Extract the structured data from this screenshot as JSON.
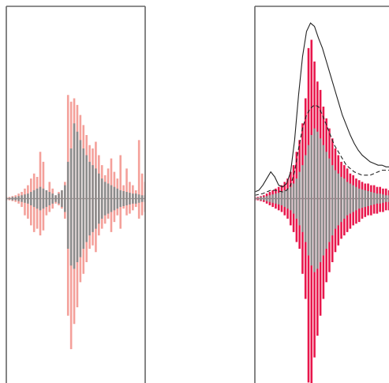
{
  "chart_data": [
    {
      "type": "bar",
      "panel": "left",
      "title": "",
      "xlabel": "",
      "ylabel": "",
      "grid": false,
      "legend": "none",
      "xlim": [
        -68,
        67
      ],
      "ylim": [
        -1.15,
        1.15
      ],
      "series": [
        {
          "style": "vertical-segments",
          "color": "#f4a09a",
          "x": [
            -68,
            -65,
            -62,
            -59,
            -56,
            -53,
            -50,
            -47,
            -44,
            -41,
            -38,
            -35,
            -32,
            -29,
            -26,
            -23,
            -20,
            -17,
            -14,
            -11,
            -8,
            -5,
            -2,
            1,
            4,
            7,
            10,
            13,
            16,
            19,
            22,
            25,
            28,
            31,
            34,
            37,
            40,
            43,
            46,
            49,
            52,
            55,
            58,
            61,
            64,
            67
          ],
          "y_upper": [
            0.01,
            0.01,
            0.015,
            0.02,
            0.03,
            0.04,
            0.06,
            0.08,
            0.12,
            0.15,
            0.13,
            0.28,
            0.22,
            0.05,
            0.1,
            0.06,
            0.02,
            0.04,
            0.05,
            0.1,
            0.62,
            0.58,
            0.6,
            0.56,
            0.5,
            0.44,
            0.38,
            0.32,
            0.3,
            0.34,
            0.26,
            0.2,
            0.14,
            0.18,
            0.24,
            0.16,
            0.12,
            0.26,
            0.08,
            0.18,
            0.1,
            0.08,
            0.05,
            0.35,
            0.15,
            0.1
          ],
          "y_lower": [
            -0.01,
            -0.01,
            -0.015,
            -0.02,
            -0.03,
            -0.05,
            -0.1,
            -0.12,
            -0.16,
            -0.2,
            -0.18,
            -0.22,
            -0.19,
            -0.1,
            -0.08,
            -0.06,
            -0.03,
            -0.04,
            -0.06,
            -0.12,
            -0.7,
            -0.9,
            -0.75,
            -0.65,
            -0.5,
            -0.45,
            -0.38,
            -0.3,
            -0.28,
            -0.32,
            -0.22,
            -0.18,
            -0.15,
            -0.12,
            -0.2,
            -0.14,
            -0.1,
            -0.18,
            -0.06,
            -0.1,
            -0.09,
            -0.07,
            -0.05,
            -0.12,
            -0.1,
            -0.08
          ]
        },
        {
          "style": "vertical-segments",
          "color": "#8c8c8c",
          "x": [
            -68,
            -65,
            -62,
            -59,
            -56,
            -53,
            -50,
            -47,
            -44,
            -41,
            -38,
            -35,
            -32,
            -29,
            -26,
            -23,
            -20,
            -17,
            -14,
            -11,
            -8,
            -5,
            -2,
            1,
            4,
            7,
            10,
            13,
            16,
            19,
            22,
            25,
            28,
            31,
            34,
            37,
            40,
            43,
            46,
            49,
            52,
            55,
            58,
            61,
            64,
            67
          ],
          "y_upper": [
            0.005,
            0.005,
            0.01,
            0.01,
            0.015,
            0.02,
            0.025,
            0.03,
            0.04,
            0.05,
            0.06,
            0.07,
            0.06,
            0.05,
            0.04,
            0.03,
            0.02,
            0.03,
            0.05,
            0.08,
            0.22,
            0.3,
            0.45,
            0.4,
            0.35,
            0.3,
            0.26,
            0.22,
            0.2,
            0.18,
            0.15,
            0.12,
            0.1,
            0.09,
            0.08,
            0.07,
            0.06,
            0.05,
            0.045,
            0.04,
            0.035,
            0.03,
            0.03,
            0.025,
            0.02,
            0.02
          ],
          "y_lower": [
            -0.005,
            -0.005,
            -0.01,
            -0.01,
            -0.015,
            -0.02,
            -0.025,
            -0.03,
            -0.04,
            -0.05,
            -0.06,
            -0.07,
            -0.06,
            -0.05,
            -0.04,
            -0.03,
            -0.02,
            -0.03,
            -0.05,
            -0.08,
            -0.3,
            -0.4,
            -0.42,
            -0.38,
            -0.35,
            -0.3,
            -0.26,
            -0.22,
            -0.2,
            -0.18,
            -0.15,
            -0.12,
            -0.1,
            -0.09,
            -0.08,
            -0.07,
            -0.06,
            -0.05,
            -0.045,
            -0.04,
            -0.035,
            -0.03,
            -0.03,
            -0.025,
            -0.02,
            -0.02
          ]
        }
      ]
    },
    {
      "type": "bar",
      "panel": "right",
      "title": "",
      "xlabel": "",
      "ylabel": "",
      "grid": false,
      "legend": "none",
      "xlim": [
        -68,
        67
      ],
      "ylim": [
        -1.15,
        1.15
      ],
      "series": [
        {
          "style": "vertical-segments",
          "color": "#e8174c",
          "x": [
            -68,
            -65,
            -62,
            -59,
            -56,
            -53,
            -50,
            -47,
            -44,
            -41,
            -38,
            -35,
            -32,
            -29,
            -26,
            -23,
            -20,
            -17,
            -14,
            -11,
            -8,
            -5,
            -2,
            1,
            4,
            7,
            10,
            13,
            16,
            19,
            22,
            25,
            28,
            31,
            34,
            37,
            40,
            43,
            46,
            49,
            52,
            55,
            58,
            61,
            64,
            67
          ],
          "y_upper": [
            0.01,
            0.01,
            0.015,
            0.02,
            0.03,
            0.04,
            0.05,
            0.06,
            0.07,
            0.08,
            0.1,
            0.12,
            0.16,
            0.2,
            0.28,
            0.35,
            0.45,
            0.6,
            0.9,
            0.95,
            0.82,
            0.7,
            0.65,
            0.55,
            0.48,
            0.42,
            0.36,
            0.3,
            0.26,
            0.22,
            0.2,
            0.18,
            0.15,
            0.14,
            0.12,
            0.11,
            0.1,
            0.09,
            0.09,
            0.08,
            0.08,
            0.07,
            0.07,
            0.06,
            0.06,
            0.05
          ],
          "y_lower": [
            -0.01,
            -0.01,
            -0.015,
            -0.02,
            -0.03,
            -0.04,
            -0.05,
            -0.06,
            -0.07,
            -0.08,
            -0.1,
            -0.12,
            -0.16,
            -0.2,
            -0.26,
            -0.3,
            -0.45,
            -0.6,
            -1.1,
            -1.12,
            -0.95,
            -0.82,
            -0.7,
            -0.6,
            -0.5,
            -0.44,
            -0.38,
            -0.32,
            -0.28,
            -0.24,
            -0.22,
            -0.2,
            -0.18,
            -0.16,
            -0.15,
            -0.14,
            -0.12,
            -0.11,
            -0.1,
            -0.1,
            -0.09,
            -0.09,
            -0.08,
            -0.08,
            -0.07,
            -0.07
          ]
        },
        {
          "style": "vertical-segments",
          "color": "#8c8c8c",
          "x": [
            -68,
            -65,
            -62,
            -59,
            -56,
            -53,
            -50,
            -47,
            -44,
            -41,
            -38,
            -35,
            -32,
            -29,
            -26,
            -23,
            -20,
            -17,
            -14,
            -11,
            -8,
            -5,
            -2,
            1,
            4,
            7,
            10,
            13,
            16,
            19,
            22,
            25,
            28,
            31,
            34,
            37,
            40,
            43,
            46,
            49,
            52,
            55,
            58,
            61,
            64,
            67
          ],
          "y_upper": [
            0.005,
            0.005,
            0.01,
            0.01,
            0.015,
            0.02,
            0.025,
            0.03,
            0.035,
            0.04,
            0.05,
            0.06,
            0.07,
            0.09,
            0.12,
            0.16,
            0.2,
            0.26,
            0.32,
            0.38,
            0.42,
            0.4,
            0.36,
            0.32,
            0.28,
            0.24,
            0.2,
            0.17,
            0.15,
            0.13,
            0.12,
            0.1,
            0.09,
            0.08,
            0.07,
            0.06,
            0.055,
            0.05,
            0.045,
            0.04,
            0.035,
            0.03,
            0.03,
            0.025,
            0.02,
            0.02
          ],
          "y_lower": [
            -0.005,
            -0.005,
            -0.01,
            -0.01,
            -0.015,
            -0.02,
            -0.025,
            -0.03,
            -0.035,
            -0.04,
            -0.05,
            -0.06,
            -0.07,
            -0.09,
            -0.12,
            -0.16,
            -0.2,
            -0.26,
            -0.34,
            -0.4,
            -0.44,
            -0.42,
            -0.38,
            -0.34,
            -0.3,
            -0.26,
            -0.22,
            -0.18,
            -0.16,
            -0.14,
            -0.12,
            -0.1,
            -0.09,
            -0.08,
            -0.07,
            -0.06,
            -0.055,
            -0.05,
            -0.045,
            -0.04,
            -0.035,
            -0.03,
            -0.03,
            -0.025,
            -0.02,
            -0.02
          ]
        },
        {
          "style": "line",
          "line_style": "solid",
          "color": "#222222",
          "x": [
            -68,
            -64,
            -60,
            -56,
            -52,
            -48,
            -44,
            -40,
            -36,
            -32,
            -28,
            -24,
            -20,
            -16,
            -12,
            -8,
            -4,
            0,
            4,
            8,
            12,
            16,
            20,
            24,
            28,
            32,
            36,
            40,
            44,
            48,
            52,
            56,
            60,
            64,
            67
          ],
          "y": [
            0.04,
            0.05,
            0.08,
            0.12,
            0.16,
            0.13,
            0.08,
            0.07,
            0.09,
            0.16,
            0.35,
            0.62,
            0.85,
            1.0,
            1.05,
            1.03,
            0.96,
            0.9,
            0.82,
            0.74,
            0.66,
            0.58,
            0.5,
            0.44,
            0.38,
            0.33,
            0.29,
            0.26,
            0.24,
            0.22,
            0.21,
            0.2,
            0.2,
            0.19,
            0.19
          ]
        },
        {
          "style": "line",
          "line_style": "dashed",
          "color": "#222222",
          "x": [
            -68,
            -64,
            -60,
            -56,
            -52,
            -48,
            -44,
            -40,
            -36,
            -32,
            -28,
            -24,
            -20,
            -16,
            -12,
            -8,
            -4,
            0,
            4,
            8,
            12,
            16,
            20,
            24,
            28,
            32,
            36,
            40,
            44,
            48,
            52,
            56,
            60,
            64,
            67
          ],
          "y": [
            0.02,
            0.025,
            0.03,
            0.04,
            0.05,
            0.05,
            0.045,
            0.04,
            0.05,
            0.08,
            0.16,
            0.3,
            0.42,
            0.5,
            0.54,
            0.56,
            0.55,
            0.5,
            0.44,
            0.38,
            0.32,
            0.28,
            0.24,
            0.2,
            0.18,
            0.16,
            0.15,
            0.14,
            0.14,
            0.14,
            0.15,
            0.16,
            0.17,
            0.17,
            0.17
          ]
        }
      ]
    }
  ]
}
